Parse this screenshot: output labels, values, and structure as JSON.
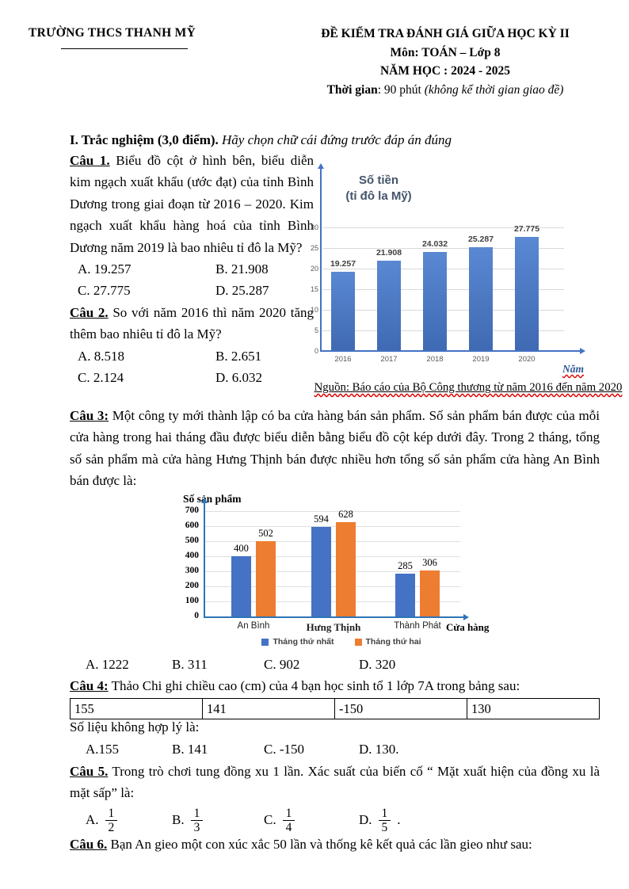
{
  "header": {
    "school": "TRƯỜNG THCS THANH MỸ",
    "title": "ĐỀ KIỂM TRA ĐÁNH GIÁ GIỮA HỌC KỲ II",
    "subject": "Môn: TOÁN – Lớp 8",
    "year": "NĂM HỌC : 2024 - 2025",
    "time_label": "Thời gian",
    "time_value": ": 90 phút ",
    "time_note": "(không kể thời gian giao đề)"
  },
  "section1": {
    "heading_bold": "I. Trắc nghiệm (3,0 điểm).",
    "heading_italic": " Hãy chọn chữ cái đứng trước đáp án đúng"
  },
  "q1": {
    "label": "Câu 1.",
    "text": " Biểu đồ cột ở hình bên, biểu diễn kim ngạch xuất khẩu (ước đạt) của tỉnh Bình Dương trong giai đoạn từ 2016 – 2020. Kim ngạch xuất khẩu hàng hoá của tỉnh Bình Dương năm 2019 là bao nhiêu tỉ đô la Mỹ?",
    "options": [
      "A. 19.257",
      "B. 21.908",
      "C. 27.775",
      "D. 25.287"
    ]
  },
  "q2": {
    "label": "Câu 2.",
    "text": " So với năm 2016 thì năm 2020 tăng thêm bao nhiêu tỉ đô la Mỹ?",
    "options": [
      "A. 8.518",
      "B. 2.651",
      "C. 2.124",
      "D. 6.032"
    ]
  },
  "q3": {
    "label": "Câu 3:",
    "text": " Một công ty mới thành lập có ba cửa hàng bán sản phẩm. Số sản phẩm bán được của mỗi cửa hàng trong hai tháng đầu được biểu diễn bằng biểu đồ cột kép dưới đây. Trong 2 tháng, tổng số sản phẩm mà cửa hàng Hưng Thịnh bán được nhiều hơn tổng số sản phẩm cửa hàng An Bình bán được là:",
    "options": [
      "A. 1222",
      "B. 311",
      "C. 902",
      "D. 320"
    ]
  },
  "q4": {
    "label": "Câu 4:",
    "text": " Thảo Chi ghi chiều cao (cm) của 4 bạn học sinh tổ 1 lớp 7A trong bảng sau:",
    "table": [
      "155",
      "141",
      "-150",
      "130"
    ],
    "note": "Số liệu không hợp lý là:",
    "options": [
      "A.155",
      "B. 141",
      "C. -150",
      "D. 130."
    ]
  },
  "q5": {
    "label": "Câu 5.",
    "text": " Trong trò chơi tung đồng xu 1 lần. Xác suất của biến cố “ Mặt xuất hiện của đồng xu là mặt sấp”  là:",
    "options": [
      {
        "letter": "A.",
        "num": "1",
        "den": "2",
        "suffix": ""
      },
      {
        "letter": "B.",
        "num": "1",
        "den": "3",
        "suffix": ""
      },
      {
        "letter": "C.",
        "num": "1",
        "den": "4",
        "suffix": ""
      },
      {
        "letter": "D.",
        "num": "1",
        "den": "5",
        "suffix": " ."
      }
    ]
  },
  "q6": {
    "label": "Câu 6.",
    "text": " Bạn An gieo một con xúc xắc 50 lần và thống kê kết quả các lần gieo như sau:"
  },
  "chart_data": [
    {
      "type": "bar",
      "title": "Số tiền (tỉ đô la Mỹ)",
      "title_lines": [
        "Số tiền",
        "(tỉ đô la Mỹ)"
      ],
      "categories": [
        "2016",
        "2017",
        "2018",
        "2019",
        "2020"
      ],
      "values": [
        19.257,
        21.908,
        24.032,
        25.287,
        27.775
      ],
      "labels": [
        "19.257",
        "21.908",
        "24.032",
        "25.287",
        "27.775"
      ],
      "xlabel": "Năm",
      "ylabel": "Số tiền (tỉ đô la Mỹ)",
      "ylim": [
        0,
        30
      ],
      "yticks": [
        0,
        5,
        10,
        15,
        20,
        25,
        30
      ],
      "grid": true,
      "bar_color": "#4472C4",
      "source": "Nguồn: Báo cáo của Bộ Công thương từ năm 2016 đến năm 2020"
    },
    {
      "type": "bar",
      "title": "Số sản phẩm",
      "categories": [
        "An Bình",
        "Hưng Thịnh",
        "Thành Phát"
      ],
      "series": [
        {
          "name": "Tháng thứ nhất",
          "color": "#4472C4",
          "values": [
            400,
            594,
            285
          ]
        },
        {
          "name": "Tháng thứ hai",
          "color": "#ED7D31",
          "values": [
            502,
            628,
            306
          ]
        }
      ],
      "xlabel": "Cửa hàng",
      "ylim": [
        0,
        700
      ],
      "yticks": [
        0,
        100,
        200,
        300,
        400,
        500,
        600,
        700
      ],
      "grid": true,
      "legend_position": "bottom"
    }
  ]
}
